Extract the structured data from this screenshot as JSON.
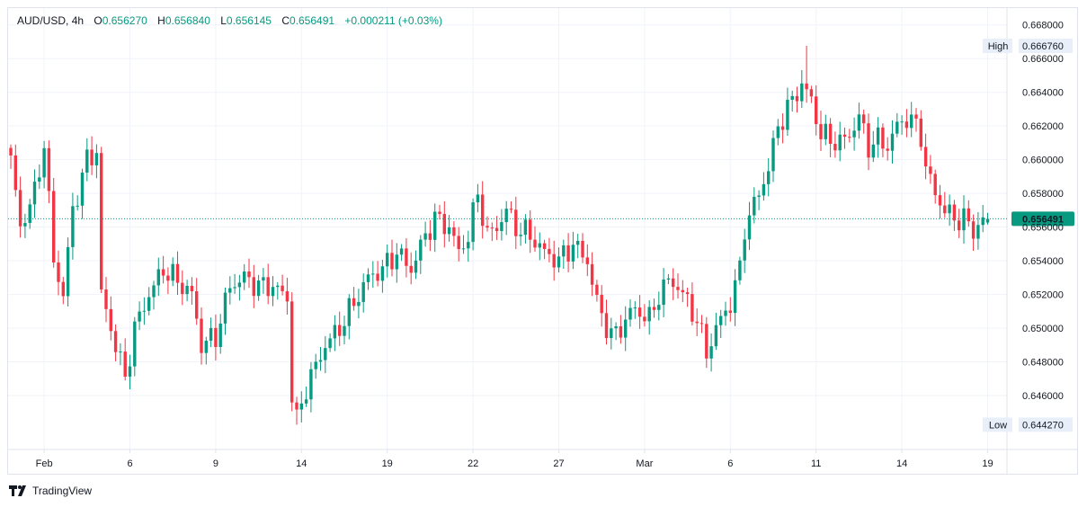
{
  "legend": {
    "symbol": "AUD/USD",
    "interval": "4h",
    "open_label": "O",
    "open": "0.656270",
    "high_label": "H",
    "high": "0.656840",
    "low_label": "L",
    "low": "0.656145",
    "close_label": "C",
    "close": "0.656491",
    "change": "+0.000211 (+0.03%)"
  },
  "brand": {
    "name": "TradingView"
  },
  "colors": {
    "up": "#089981",
    "down": "#f23645",
    "grid": "#f0f3fa",
    "text": "#131722",
    "axis": "#e0e3eb"
  },
  "chart_data": {
    "type": "candlestick",
    "title": "AUD/USD, 4h",
    "ylim": [
      0.6428,
      0.669
    ],
    "y_ticks": [
      "0.668000",
      "0.666000",
      "0.664000",
      "0.662000",
      "0.660000",
      "0.658000",
      "0.656000",
      "0.654000",
      "0.652000",
      "0.650000",
      "0.648000",
      "0.646000"
    ],
    "x_ticks": [
      {
        "label": "Feb",
        "index": 7
      },
      {
        "label": "6",
        "index": 25
      },
      {
        "label": "9",
        "index": 43
      },
      {
        "label": "14",
        "index": 61
      },
      {
        "label": "19",
        "index": 79
      },
      {
        "label": "22",
        "index": 97
      },
      {
        "label": "27",
        "index": 115
      },
      {
        "label": "Mar",
        "index": 133
      },
      {
        "label": "6",
        "index": 151
      },
      {
        "label": "11",
        "index": 169
      },
      {
        "label": "14",
        "index": 187
      },
      {
        "label": "19",
        "index": 205
      }
    ],
    "last_price": "0.656491",
    "high_marker": {
      "label": "High",
      "value": "0.666760"
    },
    "low_marker": {
      "label": "Low",
      "value": "0.644270"
    },
    "anchors": [
      [
        0,
        0.66
      ],
      [
        2,
        0.656
      ],
      [
        5,
        0.658
      ],
      [
        7,
        0.661
      ],
      [
        9,
        0.654
      ],
      [
        11,
        0.652
      ],
      [
        13,
        0.657
      ],
      [
        16,
        0.66
      ],
      [
        18,
        0.6605
      ],
      [
        19,
        0.652
      ],
      [
        21,
        0.65
      ],
      [
        23,
        0.648
      ],
      [
        24,
        0.647
      ],
      [
        26,
        0.65
      ],
      [
        29,
        0.652
      ],
      [
        32,
        0.6535
      ],
      [
        35,
        0.6528
      ],
      [
        38,
        0.652
      ],
      [
        40,
        0.649
      ],
      [
        43,
        0.6495
      ],
      [
        46,
        0.6525
      ],
      [
        49,
        0.653
      ],
      [
        52,
        0.6525
      ],
      [
        55,
        0.6525
      ],
      [
        58,
        0.6518
      ],
      [
        59,
        0.646
      ],
      [
        60,
        0.6445
      ],
      [
        62,
        0.6465
      ],
      [
        66,
        0.649
      ],
      [
        69,
        0.65
      ],
      [
        72,
        0.6515
      ],
      [
        75,
        0.653
      ],
      [
        78,
        0.6535
      ],
      [
        81,
        0.6545
      ],
      [
        84,
        0.6535
      ],
      [
        87,
        0.6555
      ],
      [
        89,
        0.6565
      ],
      [
        92,
        0.656
      ],
      [
        94,
        0.6545
      ],
      [
        96,
        0.6555
      ],
      [
        98,
        0.658
      ],
      [
        100,
        0.6555
      ],
      [
        102,
        0.656
      ],
      [
        104,
        0.657
      ],
      [
        106,
        0.656
      ],
      [
        109,
        0.6555
      ],
      [
        112,
        0.6545
      ],
      [
        115,
        0.654
      ],
      [
        118,
        0.655
      ],
      [
        121,
        0.654
      ],
      [
        123,
        0.6515
      ],
      [
        126,
        0.6495
      ],
      [
        128,
        0.65
      ],
      [
        130,
        0.651
      ],
      [
        132,
        0.651
      ],
      [
        134,
        0.6505
      ],
      [
        136,
        0.652
      ],
      [
        138,
        0.6528
      ],
      [
        140,
        0.6525
      ],
      [
        142,
        0.6515
      ],
      [
        144,
        0.6505
      ],
      [
        146,
        0.6485
      ],
      [
        148,
        0.65
      ],
      [
        151,
        0.6515
      ],
      [
        153,
        0.6535
      ],
      [
        154,
        0.656
      ],
      [
        157,
        0.658
      ],
      [
        159,
        0.6595
      ],
      [
        161,
        0.662
      ],
      [
        163,
        0.663
      ],
      [
        165,
        0.664
      ],
      [
        166,
        0.6645
      ],
      [
        168,
        0.6635
      ],
      [
        170,
        0.6615
      ],
      [
        172,
        0.6612
      ],
      [
        174,
        0.661
      ],
      [
        176,
        0.6615
      ],
      [
        178,
        0.6625
      ],
      [
        180,
        0.6608
      ],
      [
        182,
        0.6612
      ],
      [
        184,
        0.6608
      ],
      [
        186,
        0.662
      ],
      [
        188,
        0.6625
      ],
      [
        190,
        0.662
      ],
      [
        191,
        0.6615
      ],
      [
        192,
        0.6595
      ],
      [
        194,
        0.658
      ],
      [
        196,
        0.657
      ],
      [
        198,
        0.6565
      ],
      [
        200,
        0.6565
      ],
      [
        202,
        0.6558
      ],
      [
        204,
        0.6564
      ]
    ]
  }
}
